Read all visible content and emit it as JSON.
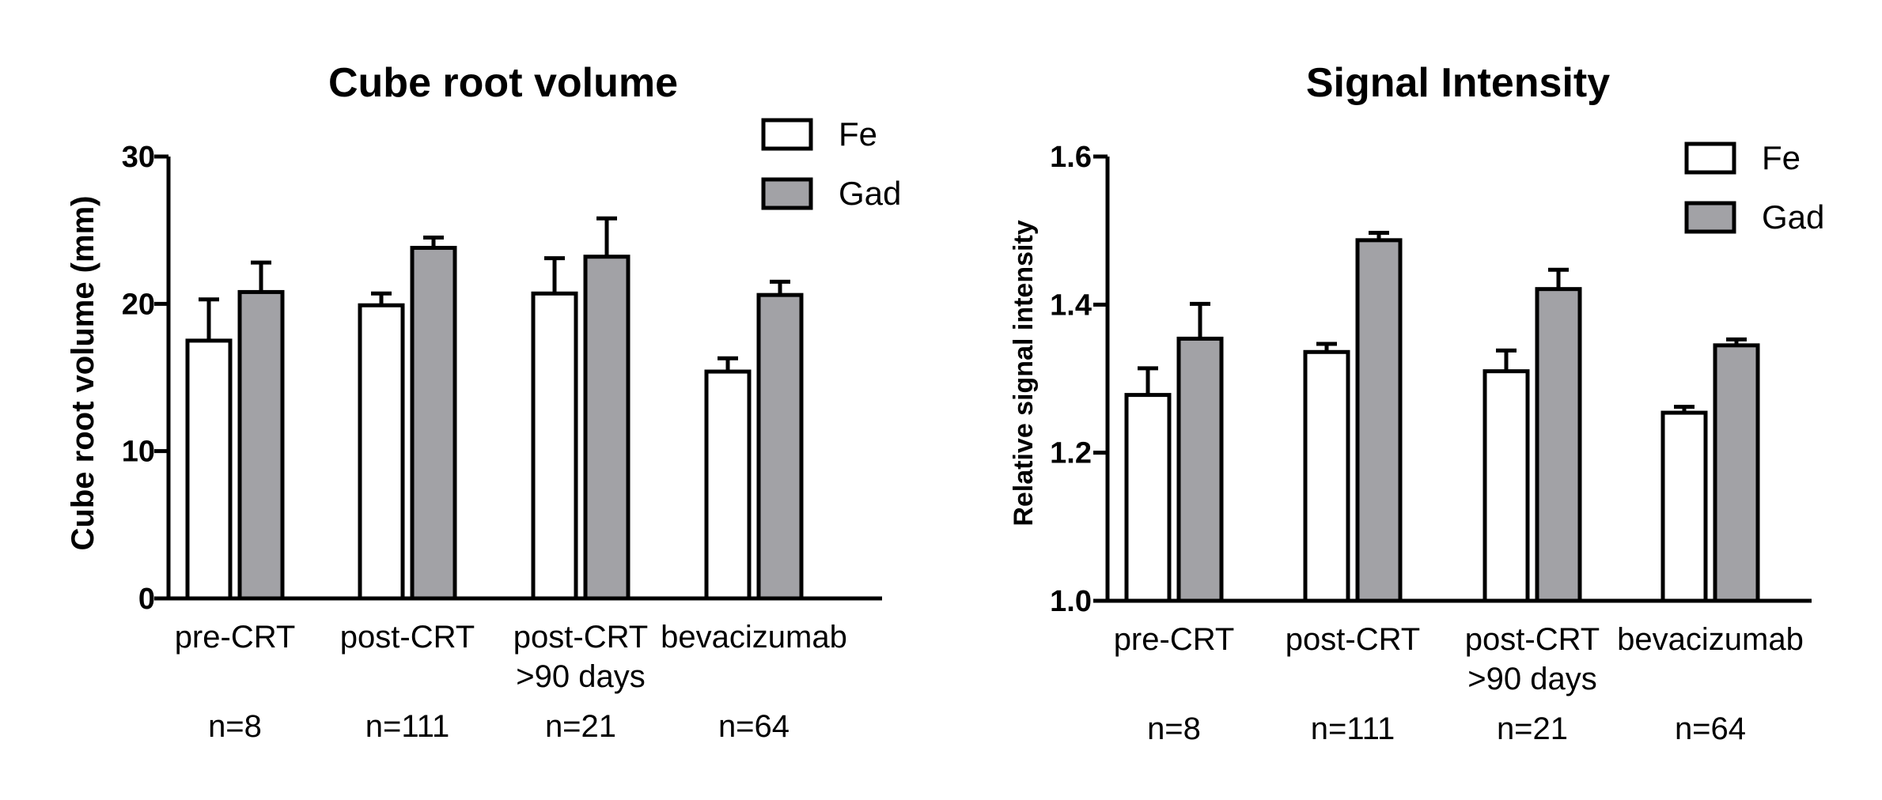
{
  "chart_data": [
    {
      "type": "bar",
      "title": "Cube root volume",
      "ylabel": "Cube root volume (mm)",
      "xlabel": "",
      "ylim": [
        0,
        30
      ],
      "yticks": [
        0,
        10,
        20,
        30
      ],
      "yticklabels": [
        "0",
        "10",
        "20",
        "30"
      ],
      "categories": [
        "pre-CRT",
        "post-CRT",
        "post-CRT\n>90 days",
        "bevacizumab"
      ],
      "n_labels": [
        "n=8",
        "n=111",
        "n=21",
        "n=64"
      ],
      "legend_position": "top-right",
      "series": [
        {
          "name": "Fe",
          "color": "#ffffff",
          "values": [
            17.5,
            19.9,
            20.7,
            15.4
          ],
          "errors": [
            2.8,
            0.8,
            2.4,
            0.9
          ]
        },
        {
          "name": "Gad",
          "color": "#a2a2a6",
          "values": [
            20.8,
            23.8,
            23.2,
            20.6
          ],
          "errors": [
            2.0,
            0.7,
            2.6,
            0.9
          ]
        }
      ]
    },
    {
      "type": "bar",
      "title": "Signal Intensity",
      "ylabel": "Relative signal intensity",
      "xlabel": "",
      "ylim": [
        1.0,
        1.6
      ],
      "yticks": [
        1.0,
        1.2,
        1.4,
        1.6
      ],
      "yticklabels": [
        "1.0",
        "1.2",
        "1.4",
        "1.6"
      ],
      "categories": [
        "pre-CRT",
        "post-CRT",
        "post-CRT\n>90 days",
        "bevacizumab"
      ],
      "n_labels": [
        "n=8",
        "n=111",
        "n=21",
        "n=64"
      ],
      "legend_position": "top-right",
      "series": [
        {
          "name": "Fe",
          "color": "#ffffff",
          "values": [
            1.278,
            1.336,
            1.31,
            1.254
          ],
          "errors": [
            0.036,
            0.011,
            0.028,
            0.008
          ]
        },
        {
          "name": "Gad",
          "color": "#a2a2a6",
          "values": [
            1.354,
            1.487,
            1.421,
            1.345
          ],
          "errors": [
            0.047,
            0.01,
            0.026,
            0.008
          ]
        }
      ]
    }
  ]
}
